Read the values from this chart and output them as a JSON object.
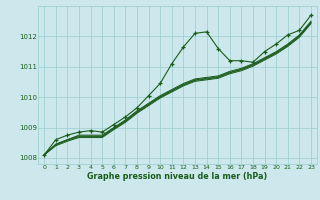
{
  "title": "Graphe pression niveau de la mer (hPa)",
  "bg_color": "#cce8ec",
  "grid_color": "#99cccc",
  "line_color": "#1a5c1a",
  "ylim": [
    1007.8,
    1013.0
  ],
  "xlim": [
    -0.5,
    23.5
  ],
  "yticks": [
    1008,
    1009,
    1010,
    1011,
    1012
  ],
  "xticks": [
    0,
    1,
    2,
    3,
    4,
    5,
    6,
    7,
    8,
    9,
    10,
    11,
    12,
    13,
    14,
    15,
    16,
    17,
    18,
    19,
    20,
    21,
    22,
    23
  ],
  "series_main": [
    1008.1,
    1008.6,
    1008.75,
    1008.85,
    1008.9,
    1008.85,
    1009.1,
    1009.35,
    1009.65,
    1010.05,
    1010.45,
    1011.1,
    1011.65,
    1012.1,
    1012.15,
    1011.6,
    1011.2,
    1011.2,
    1011.15,
    1011.5,
    1011.75,
    1012.05,
    1012.2,
    1012.7
  ],
  "series_linear1": [
    1008.1,
    1008.45,
    1008.6,
    1008.75,
    1008.75,
    1008.75,
    1009.0,
    1009.25,
    1009.55,
    1009.8,
    1010.05,
    1010.25,
    1010.45,
    1010.6,
    1010.65,
    1010.7,
    1010.85,
    1010.95,
    1011.1,
    1011.3,
    1011.5,
    1011.75,
    1012.05,
    1012.5
  ],
  "series_linear2": [
    1008.1,
    1008.45,
    1008.6,
    1008.72,
    1008.72,
    1008.72,
    1008.98,
    1009.22,
    1009.52,
    1009.77,
    1010.02,
    1010.22,
    1010.42,
    1010.57,
    1010.62,
    1010.67,
    1010.82,
    1010.92,
    1011.07,
    1011.27,
    1011.47,
    1011.72,
    1012.02,
    1012.47
  ],
  "series_linear3": [
    1008.1,
    1008.43,
    1008.58,
    1008.7,
    1008.7,
    1008.7,
    1008.96,
    1009.2,
    1009.5,
    1009.75,
    1010.0,
    1010.2,
    1010.4,
    1010.55,
    1010.6,
    1010.65,
    1010.8,
    1010.9,
    1011.05,
    1011.25,
    1011.45,
    1011.7,
    1012.0,
    1012.45
  ],
  "series_linear4": [
    1008.1,
    1008.4,
    1008.55,
    1008.67,
    1008.67,
    1008.67,
    1008.93,
    1009.17,
    1009.47,
    1009.72,
    1009.97,
    1010.17,
    1010.37,
    1010.52,
    1010.57,
    1010.62,
    1010.77,
    1010.87,
    1011.02,
    1011.22,
    1011.42,
    1011.67,
    1011.97,
    1012.42
  ]
}
